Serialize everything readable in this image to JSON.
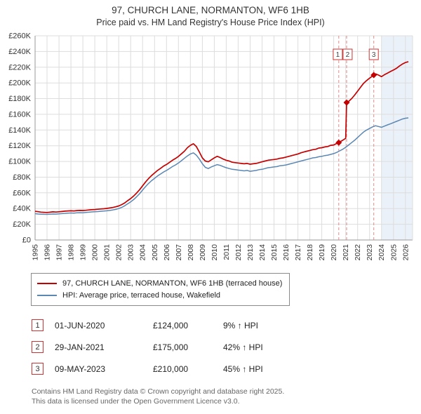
{
  "chart_data": {
    "type": "line",
    "title": "97, CHURCH LANE, NORMANTON, WF6 1HB",
    "subtitle": "Price paid vs. HM Land Registry's House Price Index (HPI)",
    "x_range": [
      1995,
      2026.6
    ],
    "y_range": [
      0,
      260000
    ],
    "x_ticks": [
      1995,
      1996,
      1997,
      1998,
      1999,
      2000,
      2001,
      2002,
      2003,
      2004,
      2005,
      2006,
      2007,
      2008,
      2009,
      2010,
      2011,
      2012,
      2013,
      2014,
      2015,
      2016,
      2017,
      2018,
      2019,
      2020,
      2021,
      2022,
      2023,
      2024,
      2025,
      2026
    ],
    "y_tick_values": [
      0,
      20000,
      40000,
      60000,
      80000,
      100000,
      120000,
      140000,
      160000,
      180000,
      200000,
      220000,
      240000,
      260000
    ],
    "y_tick_labels": [
      "£0",
      "£20K",
      "£40K",
      "£60K",
      "£80K",
      "£100K",
      "£120K",
      "£140K",
      "£160K",
      "£180K",
      "£200K",
      "£220K",
      "£240K",
      "£260K"
    ],
    "grid": true,
    "legend_position": "bottom",
    "future_shade_start": 2024.0,
    "colors": {
      "property_line": "#c40000",
      "hpi_line": "#5b87b3",
      "grid": "#dddddd",
      "axis": "#999999",
      "sale_line": "#e08a8a",
      "sale_box_border": "#cc3333",
      "future_shade": "rgba(130,165,215,0.16)"
    },
    "sales": [
      {
        "label": "1",
        "x": 2020.42,
        "price": 124000,
        "date": "01-JUN-2020",
        "pct_vs_hpi": "9%"
      },
      {
        "label": "2",
        "x": 2021.08,
        "price": 175000,
        "date": "29-JAN-2021",
        "pct_vs_hpi": "42%"
      },
      {
        "label": "3",
        "x": 2023.35,
        "price": 210000,
        "date": "09-MAY-2023",
        "pct_vs_hpi": "45%"
      }
    ],
    "series": [
      {
        "name": "97, CHURCH LANE, NORMANTON, WF6 1HB (terraced house)",
        "color": "#c40000",
        "width": 1.7,
        "points": [
          [
            1995.0,
            36500
          ],
          [
            1995.25,
            36000
          ],
          [
            1995.5,
            35500
          ],
          [
            1995.75,
            35200
          ],
          [
            1996.0,
            35000
          ],
          [
            1996.25,
            35400
          ],
          [
            1996.5,
            35800
          ],
          [
            1996.75,
            35600
          ],
          [
            1997.0,
            35900
          ],
          [
            1997.25,
            36300
          ],
          [
            1997.5,
            36700
          ],
          [
            1997.75,
            37000
          ],
          [
            1998.0,
            37200
          ],
          [
            1998.25,
            37000
          ],
          [
            1998.5,
            37400
          ],
          [
            1998.75,
            37600
          ],
          [
            1999.0,
            37500
          ],
          [
            1999.25,
            37800
          ],
          [
            1999.5,
            38200
          ],
          [
            1999.75,
            38600
          ],
          [
            2000.0,
            38800
          ],
          [
            2000.25,
            39100
          ],
          [
            2000.5,
            39500
          ],
          [
            2000.75,
            39800
          ],
          [
            2001.0,
            40200
          ],
          [
            2001.25,
            40700
          ],
          [
            2001.5,
            41400
          ],
          [
            2001.75,
            42300
          ],
          [
            2002.0,
            43300
          ],
          [
            2002.25,
            45000
          ],
          [
            2002.5,
            47200
          ],
          [
            2002.75,
            50000
          ],
          [
            2003.0,
            52700
          ],
          [
            2003.25,
            56000
          ],
          [
            2003.5,
            59800
          ],
          [
            2003.75,
            64100
          ],
          [
            2004.0,
            69000
          ],
          [
            2004.25,
            73900
          ],
          [
            2004.5,
            78200
          ],
          [
            2004.75,
            82000
          ],
          [
            2005.0,
            85300
          ],
          [
            2005.25,
            88500
          ],
          [
            2005.5,
            91200
          ],
          [
            2005.75,
            94000
          ],
          [
            2006.0,
            96100
          ],
          [
            2006.25,
            98800
          ],
          [
            2006.5,
            101500
          ],
          [
            2006.75,
            103700
          ],
          [
            2007.0,
            106400
          ],
          [
            2007.25,
            109700
          ],
          [
            2007.5,
            113000
          ],
          [
            2007.75,
            117500
          ],
          [
            2008.0,
            120500
          ],
          [
            2008.25,
            122500
          ],
          [
            2008.5,
            119000
          ],
          [
            2008.75,
            112000
          ],
          [
            2009.0,
            104500
          ],
          [
            2009.25,
            100500
          ],
          [
            2009.5,
            99500
          ],
          [
            2009.75,
            102000
          ],
          [
            2010.0,
            104500
          ],
          [
            2010.25,
            106500
          ],
          [
            2010.5,
            105000
          ],
          [
            2010.75,
            103000
          ],
          [
            2011.0,
            101500
          ],
          [
            2011.25,
            100500
          ],
          [
            2011.5,
            99000
          ],
          [
            2011.75,
            98500
          ],
          [
            2012.0,
            98000
          ],
          [
            2012.25,
            97500
          ],
          [
            2012.5,
            97000
          ],
          [
            2012.75,
            97500
          ],
          [
            2013.0,
            96500
          ],
          [
            2013.25,
            97000
          ],
          [
            2013.5,
            97500
          ],
          [
            2013.75,
            98500
          ],
          [
            2014.0,
            99500
          ],
          [
            2014.25,
            100500
          ],
          [
            2014.5,
            101500
          ],
          [
            2014.75,
            102000
          ],
          [
            2015.0,
            102500
          ],
          [
            2015.25,
            103000
          ],
          [
            2015.5,
            104000
          ],
          [
            2015.75,
            104500
          ],
          [
            2016.0,
            105500
          ],
          [
            2016.25,
            106500
          ],
          [
            2016.5,
            107500
          ],
          [
            2016.75,
            108500
          ],
          [
            2017.0,
            109500
          ],
          [
            2017.25,
            111000
          ],
          [
            2017.5,
            112000
          ],
          [
            2017.75,
            113000
          ],
          [
            2018.0,
            114000
          ],
          [
            2018.25,
            115000
          ],
          [
            2018.5,
            115500
          ],
          [
            2018.75,
            117000
          ],
          [
            2019.0,
            117500
          ],
          [
            2019.25,
            118500
          ],
          [
            2019.5,
            119000
          ],
          [
            2019.75,
            120500
          ],
          [
            2020.0,
            121000
          ],
          [
            2020.2,
            122500
          ],
          [
            2020.42,
            124000
          ],
          [
            2020.75,
            127000
          ],
          [
            2021.0,
            129500
          ],
          [
            2021.08,
            175000
          ],
          [
            2021.25,
            176500
          ],
          [
            2021.5,
            180000
          ],
          [
            2021.75,
            184500
          ],
          [
            2022.0,
            189500
          ],
          [
            2022.25,
            194500
          ],
          [
            2022.5,
            199500
          ],
          [
            2022.75,
            203000
          ],
          [
            2023.0,
            206000
          ],
          [
            2023.35,
            210000
          ],
          [
            2023.5,
            211500
          ],
          [
            2023.75,
            210000
          ],
          [
            2024.0,
            208000
          ],
          [
            2024.25,
            210500
          ],
          [
            2024.5,
            212500
          ],
          [
            2024.75,
            214500
          ],
          [
            2025.0,
            216500
          ],
          [
            2025.25,
            218500
          ],
          [
            2025.5,
            221500
          ],
          [
            2025.75,
            224000
          ],
          [
            2026.0,
            226000
          ],
          [
            2026.25,
            227000
          ]
        ]
      },
      {
        "name": "HPI: Average price, terraced house, Wakefield",
        "color": "#5b87b3",
        "width": 1.5,
        "points": [
          [
            1995.0,
            33500
          ],
          [
            1995.25,
            33100
          ],
          [
            1995.5,
            32900
          ],
          [
            1995.75,
            32700
          ],
          [
            1996.0,
            32600
          ],
          [
            1996.25,
            32900
          ],
          [
            1996.5,
            33100
          ],
          [
            1996.75,
            33000
          ],
          [
            1997.0,
            33200
          ],
          [
            1997.25,
            33600
          ],
          [
            1997.5,
            33900
          ],
          [
            1997.75,
            34200
          ],
          [
            1998.0,
            34400
          ],
          [
            1998.25,
            34200
          ],
          [
            1998.5,
            34600
          ],
          [
            1998.75,
            34800
          ],
          [
            1999.0,
            34700
          ],
          [
            1999.25,
            35000
          ],
          [
            1999.5,
            35400
          ],
          [
            1999.75,
            35700
          ],
          [
            2000.0,
            35900
          ],
          [
            2000.25,
            36200
          ],
          [
            2000.5,
            36500
          ],
          [
            2000.75,
            36800
          ],
          [
            2001.0,
            37200
          ],
          [
            2001.25,
            37600
          ],
          [
            2001.5,
            38200
          ],
          [
            2001.75,
            39000
          ],
          [
            2002.0,
            40000
          ],
          [
            2002.25,
            41500
          ],
          [
            2002.5,
            43500
          ],
          [
            2002.75,
            46000
          ],
          [
            2003.0,
            48500
          ],
          [
            2003.25,
            51500
          ],
          [
            2003.5,
            55000
          ],
          [
            2003.75,
            59000
          ],
          [
            2004.0,
            63500
          ],
          [
            2004.25,
            68000
          ],
          [
            2004.5,
            72000
          ],
          [
            2004.75,
            75500
          ],
          [
            2005.0,
            78500
          ],
          [
            2005.25,
            81500
          ],
          [
            2005.5,
            84000
          ],
          [
            2005.75,
            86500
          ],
          [
            2006.0,
            88500
          ],
          [
            2006.25,
            91000
          ],
          [
            2006.5,
            93500
          ],
          [
            2006.75,
            95500
          ],
          [
            2007.0,
            98000
          ],
          [
            2007.25,
            101000
          ],
          [
            2007.5,
            104000
          ],
          [
            2007.75,
            107000
          ],
          [
            2008.0,
            109500
          ],
          [
            2008.25,
            111000
          ],
          [
            2008.5,
            108000
          ],
          [
            2008.75,
            103000
          ],
          [
            2009.0,
            97000
          ],
          [
            2009.25,
            92500
          ],
          [
            2009.5,
            91000
          ],
          [
            2009.75,
            93000
          ],
          [
            2010.0,
            94500
          ],
          [
            2010.25,
            96000
          ],
          [
            2010.5,
            95000
          ],
          [
            2010.75,
            93500
          ],
          [
            2011.0,
            92000
          ],
          [
            2011.25,
            91000
          ],
          [
            2011.5,
            90000
          ],
          [
            2011.75,
            89500
          ],
          [
            2012.0,
            89000
          ],
          [
            2012.25,
            88500
          ],
          [
            2012.5,
            88000
          ],
          [
            2012.75,
            88500
          ],
          [
            2013.0,
            87500
          ],
          [
            2013.25,
            88000
          ],
          [
            2013.5,
            88500
          ],
          [
            2013.75,
            89500
          ],
          [
            2014.0,
            90000
          ],
          [
            2014.25,
            91000
          ],
          [
            2014.5,
            92000
          ],
          [
            2014.75,
            92500
          ],
          [
            2015.0,
            93000
          ],
          [
            2015.25,
            93500
          ],
          [
            2015.5,
            94500
          ],
          [
            2015.75,
            95000
          ],
          [
            2016.0,
            95500
          ],
          [
            2016.25,
            96500
          ],
          [
            2016.5,
            97500
          ],
          [
            2016.75,
            98500
          ],
          [
            2017.0,
            99500
          ],
          [
            2017.25,
            100500
          ],
          [
            2017.5,
            101500
          ],
          [
            2017.75,
            102500
          ],
          [
            2018.0,
            103500
          ],
          [
            2018.25,
            104500
          ],
          [
            2018.5,
            105000
          ],
          [
            2018.75,
            106000
          ],
          [
            2019.0,
            106500
          ],
          [
            2019.25,
            107500
          ],
          [
            2019.5,
            108000
          ],
          [
            2019.75,
            109000
          ],
          [
            2020.0,
            110000
          ],
          [
            2020.25,
            111500
          ],
          [
            2020.5,
            113500
          ],
          [
            2020.75,
            115500
          ],
          [
            2021.0,
            118000
          ],
          [
            2021.25,
            121000
          ],
          [
            2021.5,
            124000
          ],
          [
            2021.75,
            127000
          ],
          [
            2022.0,
            130500
          ],
          [
            2022.25,
            134000
          ],
          [
            2022.5,
            137500
          ],
          [
            2022.75,
            140000
          ],
          [
            2023.0,
            142000
          ],
          [
            2023.25,
            144000
          ],
          [
            2023.5,
            145500
          ],
          [
            2023.75,
            144500
          ],
          [
            2024.0,
            143500
          ],
          [
            2024.25,
            145000
          ],
          [
            2024.5,
            146500
          ],
          [
            2024.75,
            148000
          ],
          [
            2025.0,
            149500
          ],
          [
            2025.25,
            151000
          ],
          [
            2025.5,
            152500
          ],
          [
            2025.75,
            154000
          ],
          [
            2026.0,
            155000
          ],
          [
            2026.25,
            155500
          ]
        ]
      }
    ]
  },
  "transactions": [
    {
      "num": "1",
      "date": "01-JUN-2020",
      "price": "£124,000",
      "hpi_change": "9% ↑ HPI"
    },
    {
      "num": "2",
      "date": "29-JAN-2021",
      "price": "£175,000",
      "hpi_change": "42% ↑ HPI"
    },
    {
      "num": "3",
      "date": "09-MAY-2023",
      "price": "£210,000",
      "hpi_change": "45% ↑ HPI"
    }
  ],
  "footer": {
    "line1": "Contains HM Land Registry data © Crown copyright and database right 2025.",
    "line2": "This data is licensed under the Open Government Licence v3.0."
  }
}
